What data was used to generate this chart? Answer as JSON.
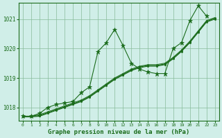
{
  "background_color": "#d0eee8",
  "grid_color": "#88bb99",
  "line_color": "#1a6b1a",
  "marker_color": "#1a6b1a",
  "title": "Graphe pression niveau de la mer (hPa)",
  "xlim": [
    -0.5,
    23.5
  ],
  "ylim": [
    1017.55,
    1021.55
  ],
  "yticks": [
    1018,
    1019,
    1020,
    1021
  ],
  "xticks": [
    0,
    1,
    2,
    3,
    4,
    5,
    6,
    7,
    8,
    9,
    10,
    11,
    12,
    13,
    14,
    15,
    16,
    17,
    18,
    19,
    20,
    21,
    22,
    23
  ],
  "series": [
    {
      "x": [
        0,
        1,
        2,
        3,
        4,
        5,
        6,
        7,
        8,
        9,
        10,
        11,
        12,
        13,
        14,
        15,
        16,
        17,
        18,
        19,
        20,
        21,
        22
      ],
      "y": [
        1017.7,
        1017.7,
        1017.8,
        1018.0,
        1018.1,
        1018.15,
        1018.2,
        1018.5,
        1018.7,
        1019.9,
        1020.2,
        1020.65,
        1020.1,
        1019.5,
        1019.3,
        1019.2,
        1019.15,
        1019.15,
        1020.0,
        1020.2,
        1020.95,
        1021.45,
        1021.1
      ],
      "marker": "*",
      "markersize": 5
    },
    {
      "x": [
        0,
        1,
        2,
        3,
        4,
        5,
        6,
        7,
        8,
        9,
        10,
        11,
        12,
        13,
        14,
        15,
        16,
        17,
        18,
        19,
        20,
        21,
        22,
        23
      ],
      "y": [
        1017.7,
        1017.7,
        1017.75,
        1017.85,
        1017.95,
        1018.05,
        1018.15,
        1018.25,
        1018.4,
        1018.6,
        1018.8,
        1019.0,
        1019.15,
        1019.3,
        1019.4,
        1019.45,
        1019.45,
        1019.5,
        1019.7,
        1019.95,
        1020.25,
        1020.6,
        1020.95,
        1021.05
      ],
      "marker": ".",
      "markersize": 3
    },
    {
      "x": [
        0,
        1,
        2,
        3,
        4,
        5,
        6,
        7,
        8,
        9,
        10,
        11,
        12,
        13,
        14,
        15,
        16,
        17,
        18,
        19,
        20,
        21,
        22,
        23
      ],
      "y": [
        1017.7,
        1017.7,
        1017.72,
        1017.82,
        1017.92,
        1018.02,
        1018.12,
        1018.22,
        1018.37,
        1018.57,
        1018.77,
        1018.97,
        1019.12,
        1019.27,
        1019.37,
        1019.42,
        1019.42,
        1019.47,
        1019.67,
        1019.92,
        1020.22,
        1020.57,
        1020.92,
        1021.02
      ],
      "marker": ".",
      "markersize": 3
    },
    {
      "x": [
        0,
        1,
        2,
        3,
        4,
        5,
        6,
        7,
        8,
        9,
        10,
        11,
        12,
        13,
        14,
        15,
        16,
        17,
        18,
        19,
        20,
        21,
        22,
        23
      ],
      "y": [
        1017.68,
        1017.68,
        1017.7,
        1017.8,
        1017.9,
        1018.0,
        1018.1,
        1018.2,
        1018.35,
        1018.55,
        1018.75,
        1018.95,
        1019.1,
        1019.25,
        1019.35,
        1019.4,
        1019.4,
        1019.45,
        1019.65,
        1019.9,
        1020.2,
        1020.55,
        1020.9,
        1021.0
      ],
      "marker": ".",
      "markersize": 3
    }
  ]
}
